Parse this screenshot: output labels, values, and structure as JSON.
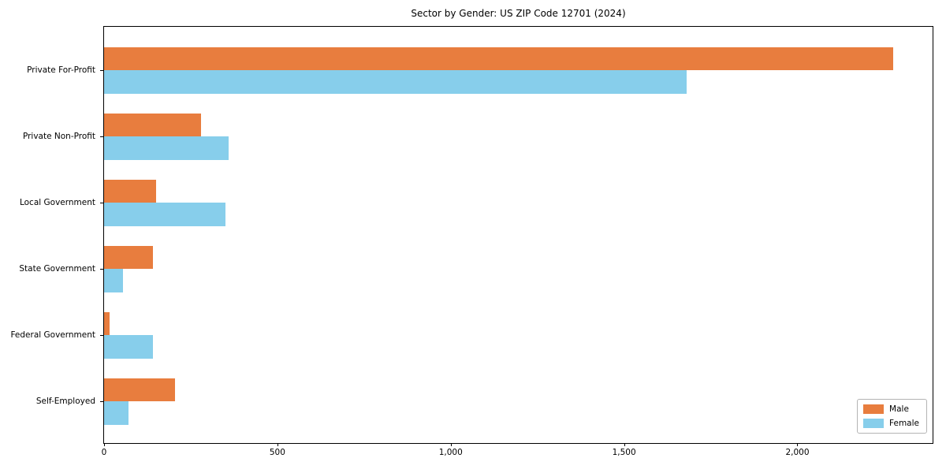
{
  "chart_data": {
    "type": "bar",
    "orientation": "horizontal",
    "title": "Sector by Gender: US ZIP Code 12701 (2024)",
    "categories": [
      "Private For-Profit",
      "Private Non-Profit",
      "Local Government",
      "State Government",
      "Federal Government",
      "Self-Employed"
    ],
    "series": [
      {
        "name": "Male",
        "color": "#E87D3E",
        "values": [
          2277,
          280,
          150,
          140,
          16,
          205
        ]
      },
      {
        "name": "Female",
        "color": "#87CEEB",
        "values": [
          1680,
          360,
          350,
          54,
          141,
          70
        ]
      }
    ],
    "xlabel": "",
    "ylabel": "",
    "xlim": [
      0,
      2390
    ],
    "xticks": [
      {
        "value": 0,
        "label": "0"
      },
      {
        "value": 500,
        "label": "500"
      },
      {
        "value": 1000,
        "label": "1,000"
      },
      {
        "value": 1500,
        "label": "1,500"
      },
      {
        "value": 2000,
        "label": "2,000"
      }
    ],
    "grid": false,
    "legend_position": "lower right"
  }
}
